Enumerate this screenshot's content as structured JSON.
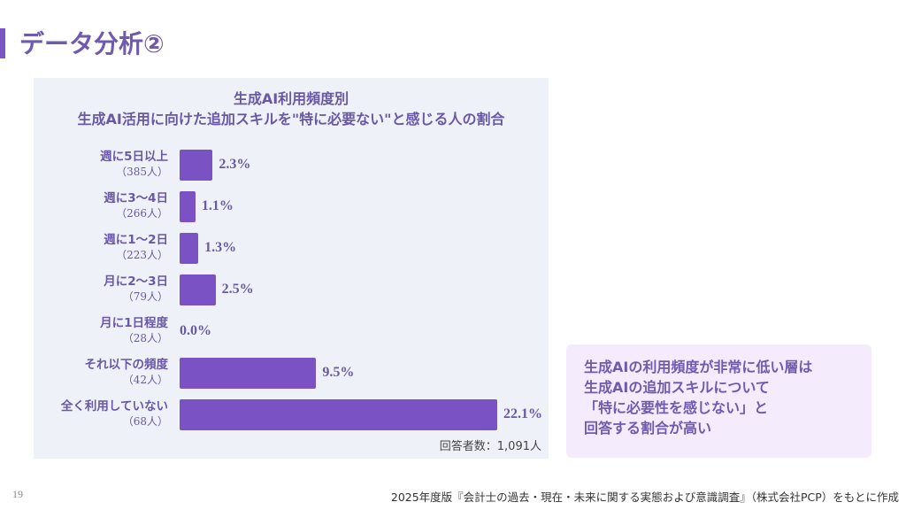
{
  "header": {
    "title": "データ分析②"
  },
  "chart_data": {
    "type": "bar",
    "orientation": "horizontal",
    "title": "生成AI利用頻度別",
    "subtitle": "生成AI活用に向けた追加スキルを\"特に必要ない\"と感じる人の割合",
    "categories": [
      "週に5日以上",
      "週に3〜4日",
      "週に1〜2日",
      "月に2〜3日",
      "月に1日程度",
      "それ以下の頻度",
      "全く利用していない"
    ],
    "counts": [
      "（385人）",
      "（266人）",
      "（223人）",
      "（79人）",
      "（28人）",
      "（42人）",
      "（68人）"
    ],
    "values": [
      2.3,
      1.1,
      1.3,
      2.5,
      0.0,
      9.5,
      22.1
    ],
    "value_labels": [
      "2.3%",
      "1.1%",
      "1.3%",
      "2.5%",
      "0.0%",
      "9.5%",
      "22.1%"
    ],
    "unit": "%",
    "bar_color": "#7a52c4",
    "respondents": "回答者数：1,091人"
  },
  "callout": {
    "lines": [
      "生成AIの利用頻度が非常に低い層は",
      "生成AIの追加スキルについて",
      "「特に必要性を感じない」と",
      "回答する割合が高い"
    ]
  },
  "footer": {
    "page": "19",
    "source": "2025年度版『会計士の過去・現在・未来に関する実態および意識調査』（株式会社PCP）をもとに作成"
  }
}
